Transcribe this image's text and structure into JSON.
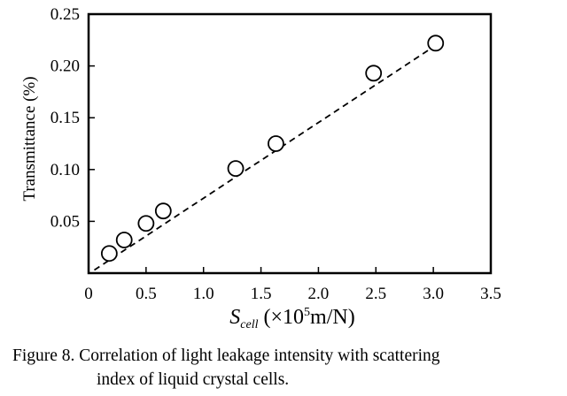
{
  "chart_data": {
    "type": "scatter",
    "xlabel": {
      "symbol": "S",
      "subscript": "cell",
      "rest_prefix": " (×10",
      "superscript": "5",
      "rest_suffix": "m/N)"
    },
    "ylabel": "Transmittance (%)",
    "xlim": [
      0,
      3.5
    ],
    "ylim": [
      0,
      0.25
    ],
    "x_ticks": [
      "0",
      "0.5",
      "1.0",
      "1.5",
      "2.0",
      "2.5",
      "3.0",
      "3.5"
    ],
    "x_tick_values": [
      0,
      0.5,
      1.0,
      1.5,
      2.0,
      2.5,
      3.0,
      3.5
    ],
    "y_ticks": [
      "0.05",
      "0.10",
      "0.15",
      "0.20",
      "0.25"
    ],
    "y_tick_values": [
      0.05,
      0.1,
      0.15,
      0.2,
      0.25
    ],
    "series": [
      {
        "marker": "open-circle",
        "x": [
          0.18,
          0.31,
          0.5,
          0.65,
          1.28,
          1.63,
          2.48,
          3.02
        ],
        "y": [
          0.019,
          0.032,
          0.048,
          0.06,
          0.101,
          0.125,
          0.193,
          0.222
        ]
      }
    ],
    "fit_line": {
      "style": "dashed",
      "x": [
        0.05,
        3.05
      ],
      "y": [
        0.003,
        0.222
      ]
    },
    "grid": false,
    "legend": "none"
  },
  "caption": {
    "line1": "Figure 8. Correlation of light leakage intensity with scattering",
    "line2": "index of liquid crystal cells."
  },
  "colors": {
    "ink": "#000000",
    "background": "#ffffff"
  }
}
